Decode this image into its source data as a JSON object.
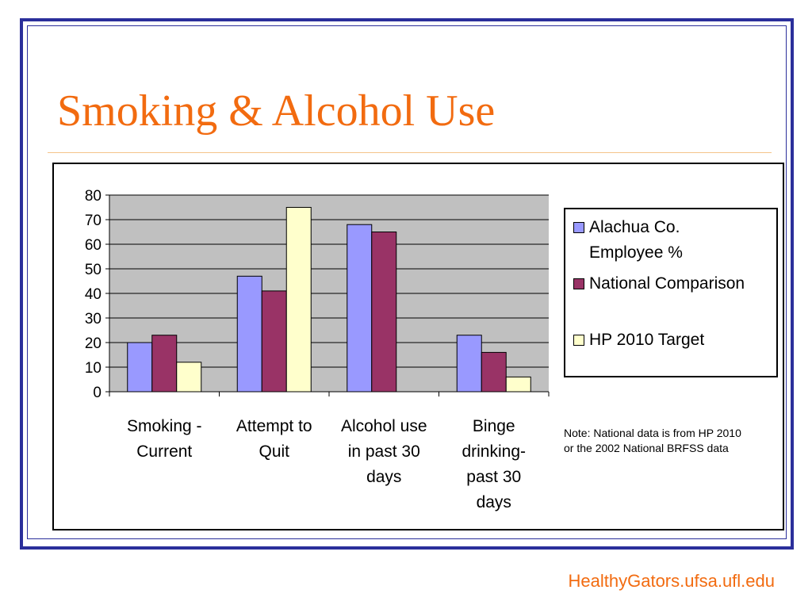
{
  "slide": {
    "title": "Smoking & Alcohol Use",
    "footer": "HealthyGators.ufsa.ufl.edu",
    "note": "Note: National data is from HP 2010 or the 2002 National BRFSS data"
  },
  "colors": {
    "title": "#f26b10",
    "frame": "#2b2f9b",
    "plot_background": "#c0c0c0"
  },
  "chart_data": {
    "type": "bar",
    "categories": [
      [
        "Smoking -",
        "Current"
      ],
      [
        "Attempt to",
        "Quit"
      ],
      [
        "Alcohol use",
        "in past 30",
        "days"
      ],
      [
        "Binge",
        "drinking-",
        "past 30",
        "days"
      ]
    ],
    "series": [
      {
        "name": "Alachua Co. Employee %",
        "color": "#9999ff",
        "values": [
          20,
          47,
          68,
          23
        ]
      },
      {
        "name": "National Comparison",
        "color": "#993366",
        "values": [
          23,
          41,
          65,
          16
        ]
      },
      {
        "name": "HP 2010 Target",
        "color": "#ffffcc",
        "values": [
          12,
          75,
          null,
          6
        ]
      }
    ],
    "ylim": [
      0,
      80
    ],
    "yticks": [
      0,
      10,
      20,
      30,
      40,
      50,
      60,
      70,
      80
    ],
    "grid": true,
    "legend": "right"
  },
  "legend": {
    "items": [
      {
        "lines": [
          "Alachua Co.",
          "Employee %"
        ]
      },
      {
        "lines": [
          "National Comparison"
        ]
      },
      {
        "lines": [
          "HP 2010 Target"
        ]
      }
    ]
  }
}
